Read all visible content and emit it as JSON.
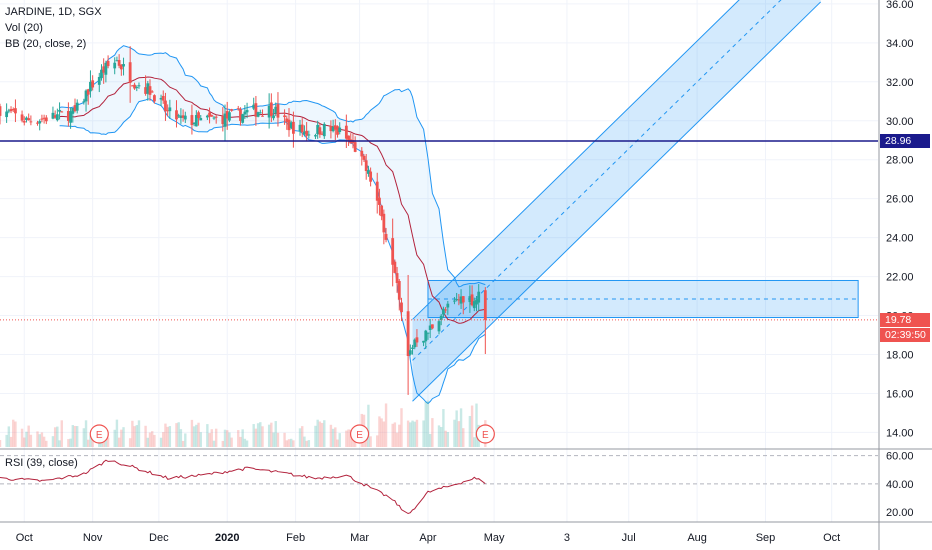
{
  "legend": {
    "symbol": "JARDINE, 1D, SGX",
    "vol": "Vol (20)",
    "bb": "BB (20, close, 2)",
    "rsi": "RSI (39, close)"
  },
  "price_tags": {
    "horizontal_line": "28.96",
    "last_price": "19.78",
    "countdown": "02:39:50"
  },
  "earnings_marker": "E",
  "colors": {
    "up": "#26a69a",
    "down": "#ef5350",
    "bb_band": "#2196f3",
    "bb_basis": "#b2223c",
    "hline": "#1a1a8c",
    "channel": "#2196f3",
    "rsi": "#b2223c",
    "last_price_tag": "#ef5350",
    "hline_tag": "#1a1a8c"
  },
  "chart_data": [
    {
      "type": "candlestick",
      "title": "JARDINE, 1D, SGX",
      "y_ticks": [
        "36.00",
        "34.00",
        "32.00",
        "30.00",
        "28.00",
        "26.00",
        "24.00",
        "22.00",
        "20.00",
        "18.00",
        "16.00",
        "14.00"
      ],
      "ylim": [
        13.2,
        36.2
      ],
      "x_ticks": [
        "Oct",
        "Nov",
        "Dec",
        "2020",
        "Feb",
        "Mar",
        "Apr",
        "May",
        "3",
        "Jul",
        "Aug",
        "Sep",
        "Oct"
      ],
      "x_tick_dates": [
        "2019-10-01",
        "2019-11-01",
        "2019-12-01",
        "2020-01-01",
        "2020-02-01",
        "2020-03-01",
        "2020-04-01",
        "2020-05-01",
        "2020-06-03",
        "2020-07-01",
        "2020-08-01",
        "2020-09-01",
        "2020-10-01"
      ],
      "xlim": [
        "2019-09-20",
        "2020-10-22"
      ],
      "price_anchors": [
        {
          "date": "2019-09-20",
          "close": 30.6
        },
        {
          "date": "2019-10-02",
          "close": 30.0
        },
        {
          "date": "2019-10-14",
          "close": 30.2
        },
        {
          "date": "2019-10-24",
          "close": 30.4
        },
        {
          "date": "2019-10-30",
          "close": 31.6
        },
        {
          "date": "2019-11-06",
          "close": 32.6
        },
        {
          "date": "2019-11-12",
          "close": 33.1
        },
        {
          "date": "2019-11-20",
          "close": 32.0
        },
        {
          "date": "2019-11-28",
          "close": 31.5
        },
        {
          "date": "2019-12-05",
          "close": 30.4
        },
        {
          "date": "2019-12-12",
          "close": 30.0
        },
        {
          "date": "2019-12-20",
          "close": 30.0
        },
        {
          "date": "2020-01-03",
          "close": 30.2
        },
        {
          "date": "2020-01-13",
          "close": 30.5
        },
        {
          "date": "2020-01-22",
          "close": 30.6
        },
        {
          "date": "2020-01-28",
          "close": 29.8
        },
        {
          "date": "2020-02-06",
          "close": 29.4
        },
        {
          "date": "2020-02-14",
          "close": 29.6
        },
        {
          "date": "2020-02-21",
          "close": 29.4
        },
        {
          "date": "2020-02-28",
          "close": 28.6
        },
        {
          "date": "2020-03-06",
          "close": 27.0
        },
        {
          "date": "2020-03-12",
          "close": 24.6
        },
        {
          "date": "2020-03-17",
          "close": 22.0
        },
        {
          "date": "2020-03-20",
          "close": 20.0
        },
        {
          "date": "2020-03-23",
          "close": 17.8
        },
        {
          "date": "2020-03-26",
          "close": 18.8
        },
        {
          "date": "2020-03-31",
          "close": 19.0
        },
        {
          "date": "2020-04-06",
          "close": 20.0
        },
        {
          "date": "2020-04-13",
          "close": 20.6
        },
        {
          "date": "2020-04-17",
          "close": 21.0
        },
        {
          "date": "2020-04-22",
          "close": 20.8
        },
        {
          "date": "2020-04-24",
          "close": 21.0
        },
        {
          "date": "2020-04-27",
          "close": 19.78
        }
      ],
      "last_price": 19.78,
      "horizontal_line": 28.96,
      "bollinger": {
        "length": 20,
        "source": "close",
        "mult": 2
      },
      "rsi": {
        "length": 39,
        "y_ticks": [
          "60.00",
          "40.00",
          "20.00"
        ],
        "ylim": [
          13,
          64
        ],
        "dashed_levels": [
          60,
          40
        ],
        "anchors": [
          {
            "date": "2019-09-20",
            "value": 44
          },
          {
            "date": "2019-10-10",
            "value": 42
          },
          {
            "date": "2019-10-28",
            "value": 47
          },
          {
            "date": "2019-11-08",
            "value": 57
          },
          {
            "date": "2019-11-15",
            "value": 54
          },
          {
            "date": "2019-12-05",
            "value": 44
          },
          {
            "date": "2019-12-20",
            "value": 46
          },
          {
            "date": "2020-01-10",
            "value": 51
          },
          {
            "date": "2020-01-25",
            "value": 48
          },
          {
            "date": "2020-02-10",
            "value": 44
          },
          {
            "date": "2020-02-24",
            "value": 46
          },
          {
            "date": "2020-03-05",
            "value": 38
          },
          {
            "date": "2020-03-15",
            "value": 30
          },
          {
            "date": "2020-03-23",
            "value": 18
          },
          {
            "date": "2020-04-01",
            "value": 34
          },
          {
            "date": "2020-04-12",
            "value": 39
          },
          {
            "date": "2020-04-22",
            "value": 44
          },
          {
            "date": "2020-04-27",
            "value": 41
          }
        ]
      },
      "drawings": {
        "regression_channel": {
          "from": {
            "date": "2020-03-25",
            "price": 17.7
          },
          "to": {
            "date": "2020-09-26",
            "price": 38.2
          },
          "width": 2.1
        },
        "price_range_box": {
          "from": {
            "date": "2020-04-01",
            "price": 21.8
          },
          "to": {
            "date": "2020-10-13",
            "price": 19.9
          }
        }
      },
      "earnings_dates": [
        "2019-11-04",
        "2020-03-01",
        "2020-04-27"
      ]
    }
  ]
}
